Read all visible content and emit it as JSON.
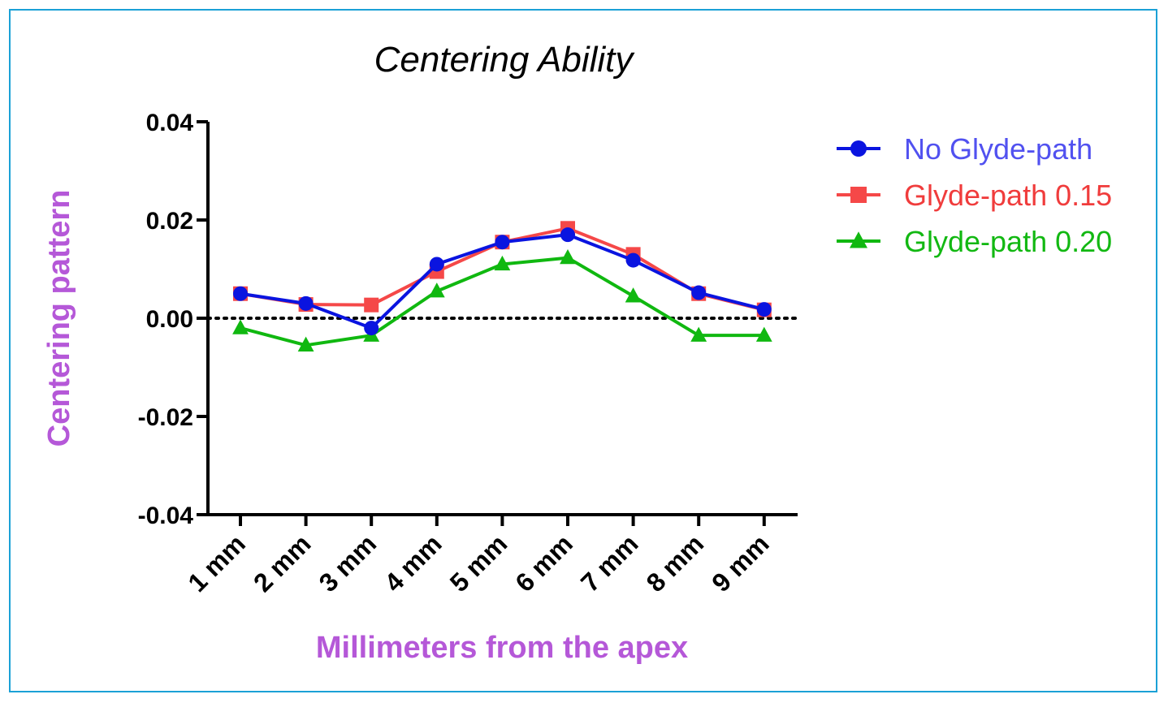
{
  "colors": {
    "border": "#1ba1d6",
    "axis_label": "#b558d8",
    "axis": "#000000"
  },
  "chart_data": {
    "type": "line",
    "title": "Centering Ability",
    "xlabel": "Millimeters from the apex",
    "ylabel": "Centering pattern",
    "categories": [
      "1 mm",
      "2 mm",
      "3 mm",
      "4 mm",
      "5 mm",
      "6 mm",
      "7 mm",
      "8 mm",
      "9 mm"
    ],
    "ylim": [
      -0.04,
      0.04
    ],
    "yticks": [
      0.04,
      0.02,
      0.0,
      -0.02,
      -0.04
    ],
    "ytick_labels": [
      "0.04",
      "0.02",
      "0.00",
      "-0.02",
      "-0.04"
    ],
    "reference_line": 0.0,
    "grid": false,
    "legend_position": "right",
    "series": [
      {
        "name": "No Glyde-path",
        "color": "#0a14e0",
        "legend_text_color": "#5151f0",
        "marker": "circle",
        "values": [
          0.005,
          0.003,
          -0.002,
          0.011,
          0.0155,
          0.017,
          0.0118,
          0.0052,
          0.0018
        ]
      },
      {
        "name": "Glyde-path 0.15",
        "color": "#f54848",
        "legend_text_color": "#f03c3c",
        "marker": "square",
        "values": [
          0.005,
          0.0028,
          0.0027,
          0.0095,
          0.0155,
          0.0183,
          0.013,
          0.005,
          0.0017
        ]
      },
      {
        "name": "Glyde-path 0.20",
        "color": "#10b810",
        "legend_text_color": "#12b812",
        "marker": "triangle",
        "values": [
          -0.002,
          -0.0055,
          -0.0035,
          0.0055,
          0.011,
          0.0123,
          0.0045,
          -0.0035,
          -0.0035
        ]
      }
    ]
  }
}
